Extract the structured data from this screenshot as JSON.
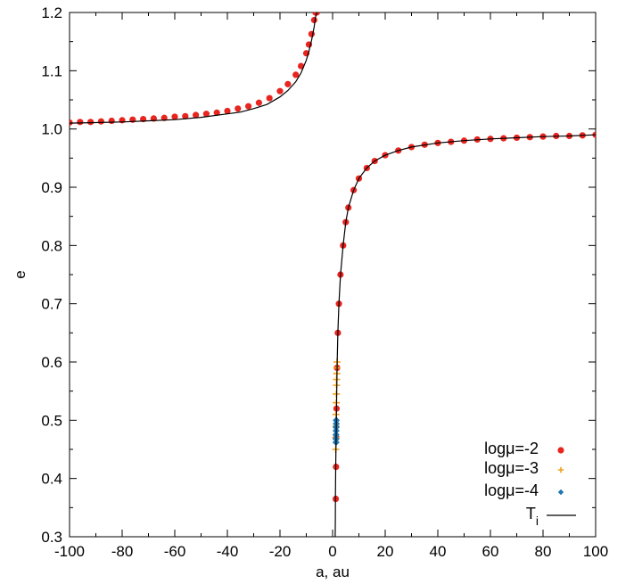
{
  "chart_data": {
    "type": "scatter",
    "title": "",
    "xlabel": "a, au",
    "ylabel": "e",
    "xlim": [
      -100,
      100
    ],
    "ylim": [
      0.3,
      1.2
    ],
    "xticks": [
      -100,
      -80,
      -60,
      -40,
      -20,
      0,
      20,
      40,
      60,
      80,
      100
    ],
    "xtick_labels": [
      "-100",
      "-80",
      "-60",
      "-40",
      "-20",
      "0",
      "20",
      "40",
      "60",
      "80",
      "100"
    ],
    "yticks": [
      0.3,
      0.4,
      0.5,
      0.6,
      0.7,
      0.8,
      0.9,
      1.0,
      1.1,
      1.2
    ],
    "ytick_labels": [
      "0.3",
      "0.4",
      "0.5",
      "0.6",
      "0.7",
      "0.8",
      "0.9",
      "1.0",
      "1.1",
      "1.2"
    ],
    "grid": false,
    "legend_position": "bottom-right",
    "series": [
      {
        "name": "logμ=-2",
        "marker": "circle",
        "color": "#e8251f",
        "x": [
          -100,
          -96,
          -92,
          -88,
          -84,
          -80,
          -76,
          -72,
          -68,
          -64,
          -60,
          -56,
          -52,
          -48,
          -44,
          -40,
          -36,
          -32,
          -28,
          -24,
          -20,
          -17,
          -14,
          -12,
          -10,
          -9,
          -8,
          -7,
          -6.5,
          -6,
          1.2,
          1.3,
          1.4,
          1.5,
          1.7,
          2,
          2.4,
          3,
          4,
          5,
          6,
          8,
          10,
          13,
          16,
          20,
          25,
          30,
          35,
          40,
          45,
          50,
          55,
          60,
          65,
          70,
          75,
          80,
          85,
          90,
          95,
          100
        ],
        "y": [
          1.011,
          1.012,
          1.012,
          1.013,
          1.014,
          1.015,
          1.016,
          1.017,
          1.018,
          1.019,
          1.021,
          1.022,
          1.024,
          1.026,
          1.028,
          1.031,
          1.035,
          1.039,
          1.045,
          1.053,
          1.065,
          1.077,
          1.093,
          1.108,
          1.13,
          1.145,
          1.163,
          1.187,
          1.2,
          1.2,
          0.365,
          0.42,
          0.47,
          0.52,
          0.59,
          0.65,
          0.7,
          0.75,
          0.8,
          0.84,
          0.865,
          0.895,
          0.915,
          0.933,
          0.945,
          0.955,
          0.963,
          0.969,
          0.973,
          0.976,
          0.978,
          0.98,
          0.982,
          0.983,
          0.984,
          0.985,
          0.986,
          0.987,
          0.988,
          0.988,
          0.989,
          0.99
        ]
      },
      {
        "name": "logμ=-3",
        "marker": "plus",
        "color": "#f0a11e",
        "x": [
          1.2,
          1.2,
          1.3,
          1.3,
          1.4,
          1.4,
          1.5,
          1.5,
          1.6,
          1.6,
          1.7
        ],
        "y": [
          0.45,
          0.47,
          0.49,
          0.51,
          0.53,
          0.545,
          0.56,
          0.57,
          0.58,
          0.59,
          0.6
        ]
      },
      {
        "name": "logμ=-4",
        "marker": "diamond",
        "color": "#1f78b4",
        "x": [
          1.3,
          1.3,
          1.3,
          1.35,
          1.35,
          1.4,
          1.4
        ],
        "y": [
          0.462,
          0.468,
          0.475,
          0.482,
          0.488,
          0.494,
          0.5
        ]
      },
      {
        "name": "T",
        "name_subscript": "i",
        "type": "line",
        "color": "#000000",
        "x": [
          -100,
          -90,
          -80,
          -70,
          -60,
          -50,
          -40,
          -35,
          -30,
          -25,
          -20,
          -17,
          -14,
          -12,
          -10,
          -9,
          -8,
          -7,
          -6.5,
          -6,
          -5.6,
          1.0,
          1.05,
          1.1,
          1.2,
          1.3,
          1.4,
          1.5,
          1.7,
          2,
          2.4,
          3,
          4,
          5,
          6,
          8,
          10,
          13,
          16,
          20,
          25,
          30,
          40,
          50,
          60,
          70,
          80,
          90,
          100
        ],
        "y": [
          1.01,
          1.011,
          1.012,
          1.014,
          1.016,
          1.02,
          1.026,
          1.029,
          1.035,
          1.042,
          1.055,
          1.066,
          1.081,
          1.096,
          1.118,
          1.133,
          1.152,
          1.176,
          1.192,
          1.2,
          1.2,
          0.3,
          0.33,
          0.37,
          0.42,
          0.455,
          0.48,
          0.52,
          0.59,
          0.65,
          0.7,
          0.75,
          0.8,
          0.84,
          0.865,
          0.895,
          0.915,
          0.933,
          0.945,
          0.955,
          0.963,
          0.969,
          0.976,
          0.98,
          0.983,
          0.985,
          0.987,
          0.988,
          0.99
        ]
      }
    ]
  }
}
